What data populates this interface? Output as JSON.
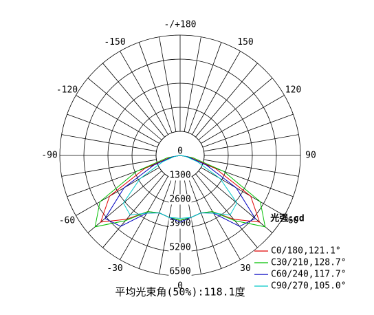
{
  "chart_data": {
    "type": "polar",
    "x": [
      -90,
      -80,
      -70,
      -60,
      -50,
      -40,
      -30,
      -20,
      -10,
      0,
      10,
      20,
      30,
      40,
      50,
      60,
      70,
      80,
      90
    ],
    "xticks": [
      {
        "value": 180,
        "label": "-/+180"
      },
      -150,
      150,
      -120,
      120,
      -90,
      90,
      -60,
      60,
      -30,
      30,
      0
    ],
    "rlim": [
      0,
      6500
    ],
    "rticks": [
      0,
      1300,
      2600,
      3900,
      5200,
      6500
    ],
    "legend_title": "光强:cd",
    "legend": "bottom-right",
    "series": [
      {
        "name": "C0/180,121.1°",
        "color": "#e00000",
        "values": [
          0,
          500,
          2000,
          4400,
          5600,
          4500,
          3500,
          3300,
          3400,
          3500,
          3400,
          3300,
          3500,
          4500,
          5600,
          4400,
          2000,
          500,
          0
        ]
      },
      {
        "name": "C30/210,128.7°",
        "color": "#00c000",
        "values": [
          0,
          700,
          2500,
          5000,
          6000,
          4600,
          3500,
          3300,
          3400,
          3500,
          3400,
          3300,
          3500,
          4600,
          6000,
          5000,
          2500,
          700,
          0
        ]
      },
      {
        "name": "C60/240,117.7°",
        "color": "#0000c0",
        "values": [
          0,
          400,
          1500,
          3500,
          5300,
          5000,
          3600,
          3300,
          3400,
          3600,
          3400,
          3300,
          3600,
          5000,
          5300,
          3500,
          1500,
          400,
          0
        ]
      },
      {
        "name": "C90/270,105.0°",
        "color": "#00c8c8",
        "values": [
          0,
          300,
          1000,
          2500,
          4000,
          4200,
          3600,
          3300,
          3400,
          3400,
          3400,
          3300,
          3600,
          4200,
          4000,
          2500,
          1000,
          300,
          0
        ]
      }
    ],
    "annotation": "平均光束角(50%):118.1度"
  }
}
